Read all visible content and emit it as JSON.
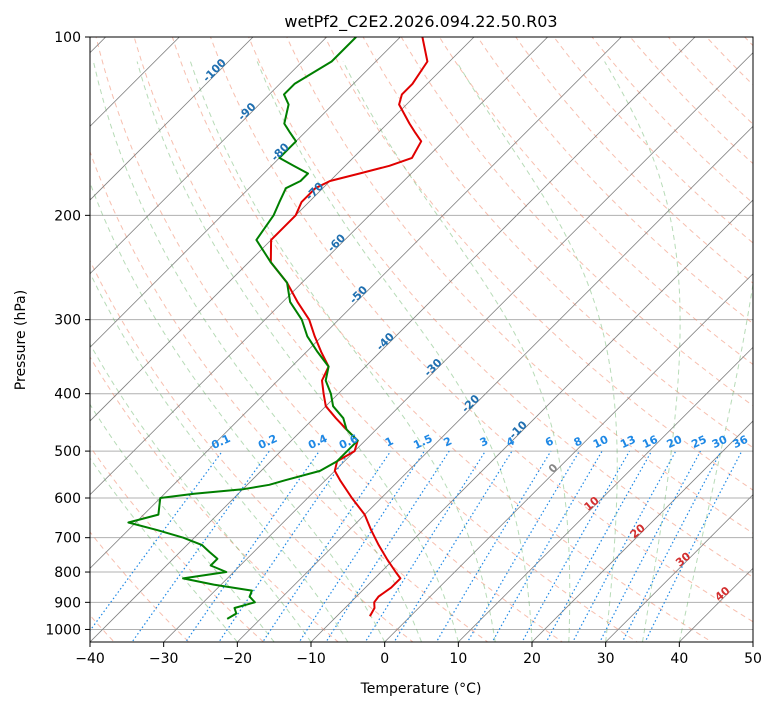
{
  "chart_data": {
    "type": "line",
    "subtype": "skew-t log-p diagram",
    "title": "wetPf2_C2E2.2026.094.22.50.R03",
    "xlabel": "Temperature (°C)",
    "ylabel": "Pressure (hPa)",
    "xlim": [
      -40,
      50
    ],
    "ylim": [
      1050,
      100
    ],
    "x_ticks": [
      -40,
      -30,
      -20,
      -10,
      0,
      10,
      20,
      30,
      40,
      50
    ],
    "x_tick_labels": [
      "−40",
      "−30",
      "−20",
      "−10",
      "0",
      "10",
      "20",
      "30",
      "40",
      "50"
    ],
    "y_ticks": [
      100,
      200,
      300,
      400,
      500,
      600,
      700,
      800,
      900,
      1000
    ],
    "y_tick_labels": [
      "100",
      "200",
      "300",
      "400",
      "500",
      "600",
      "700",
      "800",
      "900",
      "1000"
    ],
    "grid": true,
    "colors": {
      "temperature": "#e00000",
      "dewpoint": "#007f00",
      "isotherm": "#808080",
      "dry_adiabat": "#f08060",
      "moist_adiabat": "#60b060",
      "mixing_ratio": "#1e88e5",
      "isotherm_label": "#1f6fb0",
      "dry_adiabat_label": "#d32f2f",
      "zero_label": "#888888"
    },
    "isotherm_labels": [
      "-100",
      "-90",
      "-80",
      "-70",
      "-60",
      "-50",
      "-40",
      "-30",
      "-20",
      "-10"
    ],
    "isotherm_label_values": [
      -100,
      -90,
      -80,
      -70,
      -60,
      -50,
      -40,
      -30,
      -20,
      -10
    ],
    "mixing_ratio_labels": [
      "0.1",
      "0.2",
      "0.4",
      "0.6",
      "1",
      "1.5",
      "2",
      "3",
      "4",
      "6",
      "8",
      "10",
      "13",
      "16",
      "20",
      "25",
      "30",
      "36"
    ],
    "mixing_ratio_values": [
      0.1,
      0.2,
      0.4,
      0.6,
      1,
      1.5,
      2,
      3,
      4,
      6,
      8,
      10,
      13,
      16,
      20,
      25,
      30,
      36
    ],
    "zero_isotherm_label": "0",
    "dry_adiabat_labels": [
      "10",
      "20",
      "30",
      "40"
    ],
    "dry_adiabat_label_values": [
      10,
      20,
      30,
      40
    ],
    "series": [
      {
        "name": "Temperature",
        "pressure": [
          950,
          920,
          900,
          880,
          850,
          820,
          800,
          760,
          720,
          680,
          640,
          600,
          560,
          540,
          520,
          500,
          480,
          460,
          440,
          420,
          400,
          380,
          360,
          340,
          320,
          300,
          280,
          260,
          240,
          220,
          200,
          190,
          180,
          175,
          170,
          165,
          160,
          150,
          145,
          140,
          130,
          125,
          120,
          110,
          100
        ],
        "temperature": [
          -5.5,
          -6,
          -6.8,
          -7,
          -6.5,
          -6.5,
          -8,
          -11,
          -14,
          -17,
          -20,
          -24,
          -28,
          -30,
          -31,
          -30,
          -31,
          -34,
          -37,
          -40,
          -42,
          -44,
          -45,
          -48,
          -51,
          -54,
          -58,
          -62,
          -67,
          -70,
          -70,
          -71,
          -71,
          -70,
          -67,
          -64,
          -62,
          -63,
          -65,
          -67,
          -71,
          -72,
          -72,
          -73,
          -77
        ]
      },
      {
        "name": "Dewpoint",
        "pressure": [
          960,
          940,
          920,
          900,
          880,
          860,
          840,
          820,
          800,
          780,
          760,
          740,
          720,
          700,
          680,
          660,
          640,
          620,
          600,
          590,
          580,
          570,
          560,
          540,
          520,
          500,
          480,
          460,
          440,
          420,
          400,
          380,
          360,
          340,
          320,
          300,
          280,
          260,
          240,
          220,
          200,
          190,
          180,
          175,
          170,
          165,
          160,
          150,
          145,
          140,
          130,
          125,
          120,
          110,
          100
        ],
        "dewpoint": [
          -24.5,
          -24,
          -25,
          -23,
          -24.5,
          -25,
          -31,
          -36,
          -31,
          -34,
          -34,
          -36,
          -38,
          -41.5,
          -46,
          -51,
          -48,
          -49,
          -50,
          -46,
          -40,
          -37,
          -35.5,
          -32,
          -31,
          -31,
          -31,
          -34,
          -36,
          -39,
          -41,
          -43.5,
          -45,
          -48.5,
          -52,
          -55,
          -59,
          -62,
          -67,
          -72,
          -73,
          -74,
          -75,
          -74,
          -74,
          -77,
          -80,
          -80,
          -82,
          -84,
          -86,
          -88,
          -88,
          -86,
          -86
        ]
      }
    ]
  }
}
